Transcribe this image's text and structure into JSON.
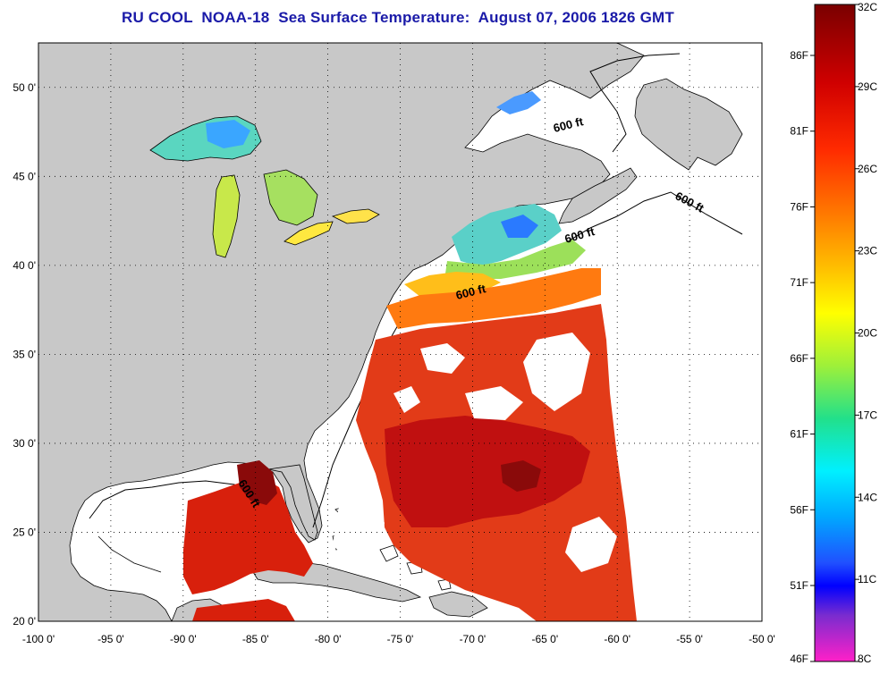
{
  "title": "RU COOL  NOAA-18  Sea Surface Temperature:  August 07, 2006 1826 GMT",
  "map": {
    "lon_range": [
      -100,
      -50
    ],
    "lat_range": [
      20,
      52.5
    ],
    "x_ticks": [
      "-100 0'",
      "-95 0'",
      "-90 0'",
      "-85 0'",
      "-80 0'",
      "-75 0'",
      "-70 0'",
      "-65 0'",
      "-60 0'",
      "-55 0'",
      "-50 0'"
    ],
    "y_ticks": [
      "50 0'",
      "45 0'",
      "40 0'",
      "35 0'",
      "30 0'",
      "25 0'",
      "20 0'"
    ],
    "grid": "dotted",
    "land_color": "#c8c8c8",
    "isobath_labels": [
      "600 ft",
      "600 ft",
      "600 ft",
      "600 ft",
      "600 ft"
    ]
  },
  "colorbar": {
    "celsius": [
      "32C",
      "29C",
      "26C",
      "23C",
      "20C",
      "17C",
      "14C",
      "11C",
      "8C"
    ],
    "fahrenheit": [
      "86F",
      "81F",
      "76F",
      "71F",
      "66F",
      "61F",
      "56F",
      "51F",
      "46F"
    ]
  }
}
